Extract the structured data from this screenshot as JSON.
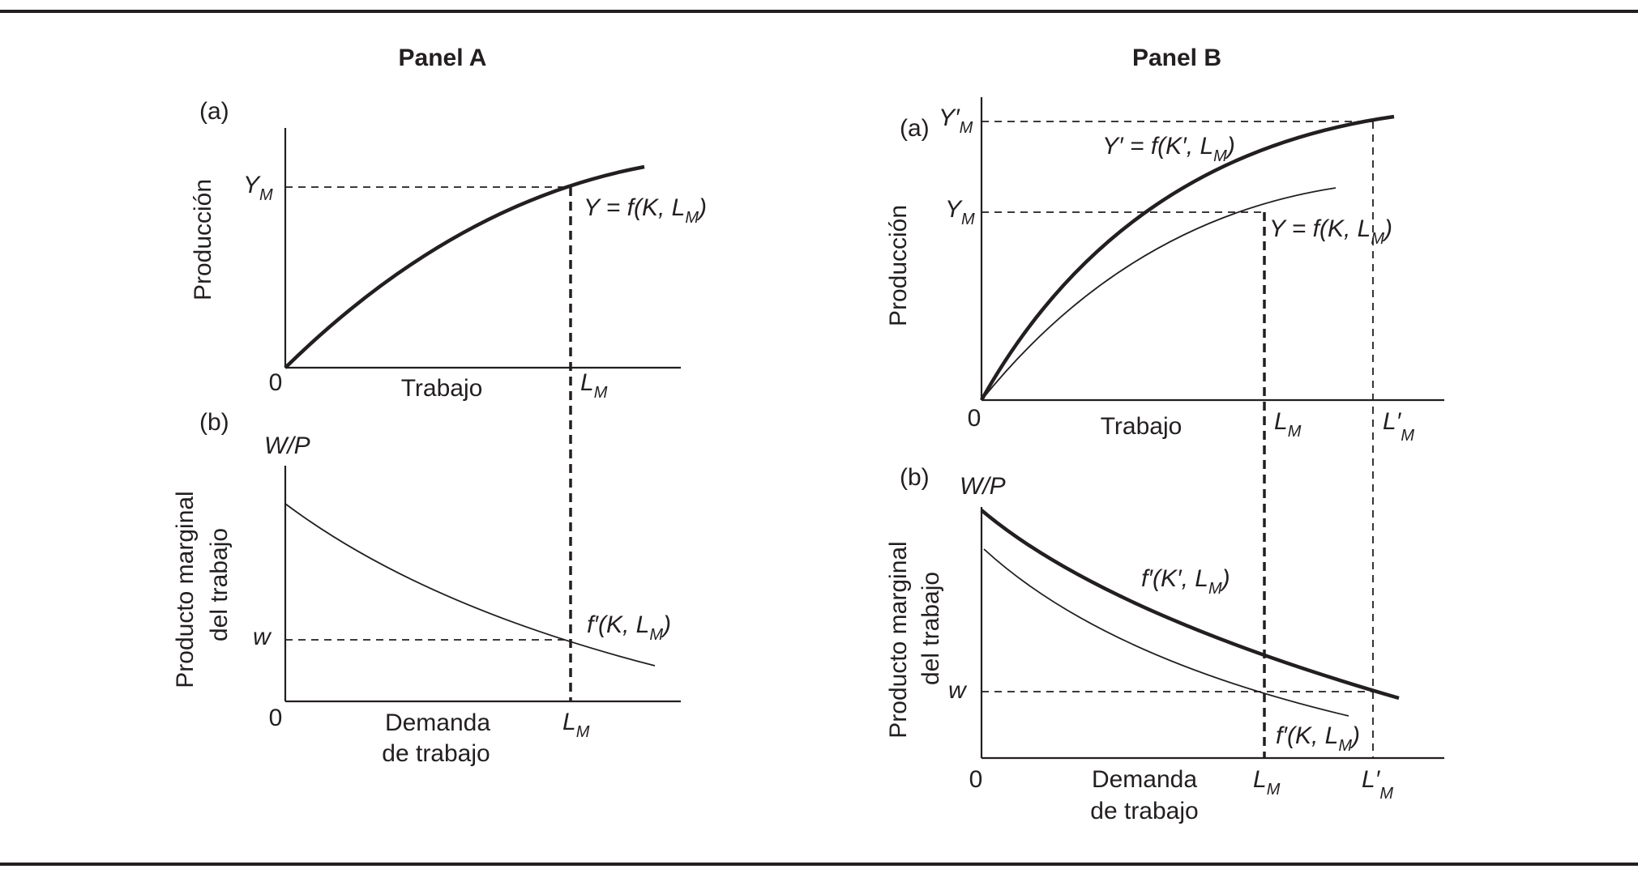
{
  "panel_a": {
    "title": "Panel A",
    "a": {
      "tag": "(a)",
      "ylabel": "Producción",
      "xlabel": "Trabajo",
      "origin": "0",
      "y_tick": {
        "main": "Y",
        "sub": "M"
      },
      "x_tick": {
        "main": "L",
        "sub": "M"
      },
      "curve_label": {
        "pre": "Y = f(K, L",
        "sub": "M",
        "post": ")"
      }
    },
    "b": {
      "tag": "(b)",
      "ylabel_line1": "Producto marginal",
      "ylabel_line2": "del trabajo",
      "y_top": "W/P",
      "xlabel_line1": "Demanda",
      "xlabel_line2": "de trabajo",
      "origin": "0",
      "y_tick": "w",
      "x_tick": {
        "main": "L",
        "sub": "M"
      },
      "curve_label": {
        "pre": "f′(K, L",
        "sub": "M",
        "post": ")"
      }
    }
  },
  "panel_b": {
    "title": "Panel  B",
    "a": {
      "tag": "(a)",
      "ylabel": "Producción",
      "xlabel": "Trabajo",
      "origin": "0",
      "y_tick_high": {
        "main": "Y′",
        "sub": "M"
      },
      "y_tick_low": {
        "main": "Y",
        "sub": "M"
      },
      "x_tick_low": {
        "main": "L",
        "sub": "M"
      },
      "x_tick_high": {
        "main": "L′",
        "sub": "M"
      },
      "curve_high_label": {
        "pre": "Y′ = f(K′, L",
        "sub": "M",
        "post": ")"
      },
      "curve_low_label": {
        "pre": "Y = f(K, L",
        "sub": "M",
        "post": ")"
      }
    },
    "b": {
      "tag": "(b)",
      "ylabel_line1": "Producto marginal",
      "ylabel_line2": "del trabajo",
      "y_top": "W/P",
      "xlabel_line1": "Demanda",
      "xlabel_line2": "de trabajo",
      "origin": "0",
      "y_tick": "w",
      "x_tick_low": {
        "main": "L",
        "sub": "M"
      },
      "x_tick_high": {
        "main": "L′",
        "sub": "M"
      },
      "curve_high_label": {
        "pre": "f′(K′, L",
        "sub": "M",
        "post": ")"
      },
      "curve_low_label": {
        "pre": "f′(K, L",
        "sub": "M",
        "post": ")"
      }
    }
  }
}
